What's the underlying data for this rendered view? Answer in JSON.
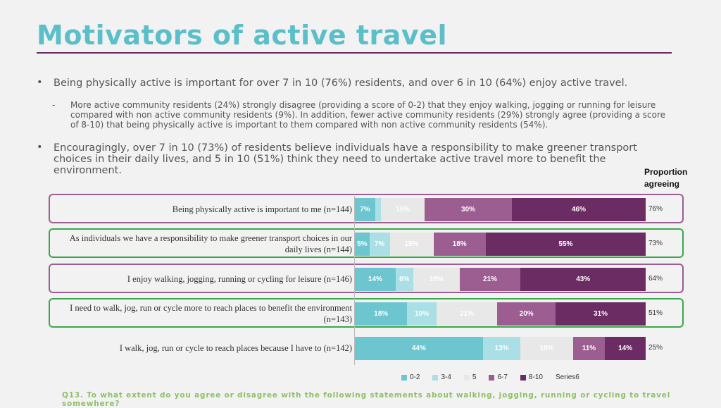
{
  "title": "Motivators of active travel",
  "bullet_symbol": "•",
  "dash_symbol": "-",
  "bullets": [
    "Being physically active is important for over 7 in 10 (76%) residents, and over 6 in 10 (64%) enjoy active travel.",
    "More active community residents (24%) strongly disagree (providing a score of 0-2) that they enjoy walking, jogging or running for leisure compared with non active community residents (9%). In addition, fewer active community residents (29%) strongly agree (providing a score of 8-10) that being physically active is important to them compared with non active community residents (54%).",
    "Encouragingly, over 7 in 10 (73%) of residents believe individuals have a responsibility to make greener transport choices in their daily lives, and 5 in 10 (51%) think they need to undertake active travel more to benefit the environment."
  ],
  "proportion_header": "Proportion agreeing",
  "footer": "Q13. To what extent do you agree or disagree with the following statements about walking, jogging, running or cycling to travel somewhere?",
  "colors": {
    "0-2": "#6cc5cf",
    "3-4": "#a9dfe5",
    "5": "#e8e8e8",
    "6-7": "#9c5d91",
    "8-10": "#6b2c63",
    "box_purple": "#9c5d91",
    "box_green": "#3aa84a"
  },
  "chart_data": {
    "type": "bar",
    "orientation": "horizontal-stacked",
    "categories": [
      "Being physically active is important to me (n=144)",
      "As individuals we have a responsibility to make greener transport choices in our daily lives (n=144)",
      "I enjoy walking, jogging, running or cycling for leisure (n=146)",
      "I need to walk, jog, run or cycle more to reach places to benefit the environment (n=143)",
      "I walk, jog, run or cycle to reach places because I have to (n=142)"
    ],
    "series": [
      {
        "name": "0-2",
        "values": [
          7,
          5,
          14,
          18,
          44
        ],
        "labels": [
          "7%",
          "5%",
          "14%",
          "18%",
          "44%"
        ]
      },
      {
        "name": "3-4",
        "values": [
          2,
          7,
          6,
          10,
          13
        ],
        "labels": [
          "",
          "7%",
          "6%",
          "10%",
          "13%"
        ]
      },
      {
        "name": "5",
        "values": [
          15,
          15,
          16,
          21,
          18
        ],
        "labels": [
          "15%",
          "15%",
          "16%",
          "21%",
          "18%"
        ]
      },
      {
        "name": "6-7",
        "values": [
          30,
          18,
          21,
          20,
          11
        ],
        "labels": [
          "30%",
          "18%",
          "21%",
          "20%",
          "11%"
        ]
      },
      {
        "name": "8-10",
        "values": [
          46,
          55,
          43,
          31,
          14
        ],
        "labels": [
          "46%",
          "55%",
          "43%",
          "31%",
          "14%"
        ]
      }
    ],
    "proportion_agreeing": [
      "76%",
      "73%",
      "64%",
      "51%",
      "25%"
    ],
    "box_colors": [
      "box_purple",
      "box_green",
      "box_purple",
      "box_green",
      "none"
    ],
    "legend": [
      "0-2",
      "3-4",
      "5",
      "6-7",
      "8-10",
      "Series6"
    ],
    "legend_placement": "bottom",
    "xlim": [
      0,
      100
    ]
  }
}
